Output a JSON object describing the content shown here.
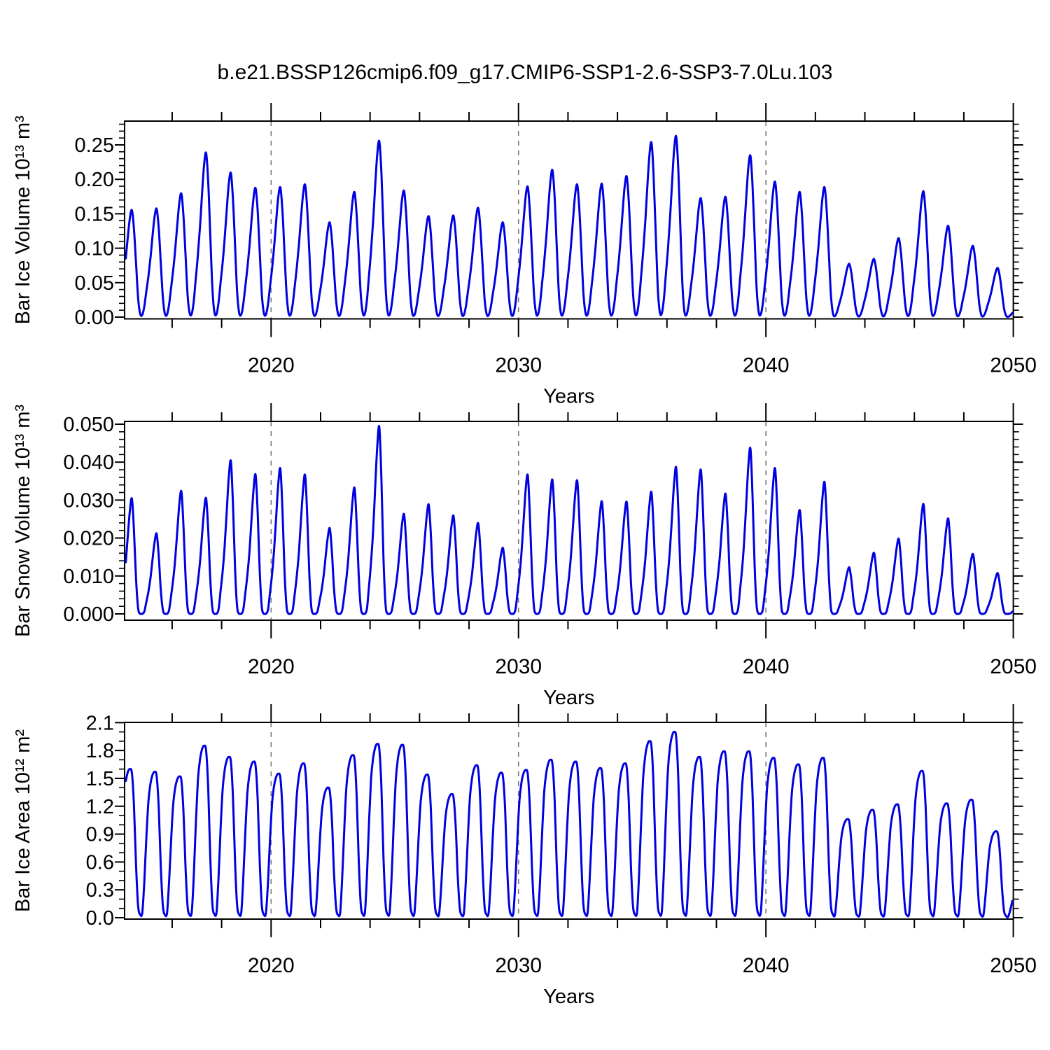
{
  "title": "b.e21.BSSP126cmip6.f09_g17.CMIP6-SSP1-2.6-SSP3-7.0Lu.103",
  "figure": {
    "background_color": "#ffffff",
    "line_color": "#0000e0",
    "grid_color": "#7a7a7a",
    "frame_color": "#000000"
  },
  "x_axis": {
    "label": "Years",
    "range_start": 2014.08,
    "range_end": 2050,
    "tick_step_years": 2,
    "decade_values": [
      2020,
      2030,
      2040,
      2050
    ],
    "decade_labels": [
      "2020",
      "2030",
      "2040",
      "2050"
    ],
    "dashed_grid_years": [
      2020,
      2030,
      2040
    ]
  },
  "chart_data": [
    {
      "id": "ice-volume",
      "type": "line",
      "ylabel": "Bar Ice Volume 10¹³ m³",
      "y_tick_labels": [
        "0.00",
        "0.05",
        "0.10",
        "0.15",
        "0.20",
        "0.25"
      ],
      "y_tick_values": [
        0,
        0.05,
        0.1,
        0.15,
        0.2,
        0.25
      ],
      "y_minor_step": 0.01,
      "ylim": [
        0,
        0.285
      ],
      "seasonality_note": "annual cycle: max in May, min (~0) in Sep-Oct",
      "seasonal_shape_jan_dec": [
        0.38,
        0.55,
        0.75,
        0.93,
        1.0,
        0.82,
        0.5,
        0.18,
        0.03,
        0.02,
        0.1,
        0.24
      ],
      "years": [
        2014,
        2015,
        2016,
        2017,
        2018,
        2019,
        2020,
        2021,
        2022,
        2023,
        2024,
        2025,
        2026,
        2027,
        2028,
        2029,
        2030,
        2031,
        2032,
        2033,
        2034,
        2035,
        2036,
        2037,
        2038,
        2039,
        2040,
        2041,
        2042,
        2043,
        2044,
        2045,
        2046,
        2047,
        2048,
        2049
      ],
      "annual_peak_values": [
        0.155,
        0.157,
        0.179,
        0.238,
        0.209,
        0.187,
        0.188,
        0.192,
        0.137,
        0.181,
        0.255,
        0.183,
        0.146,
        0.147,
        0.158,
        0.137,
        0.189,
        0.213,
        0.192,
        0.193,
        0.204,
        0.253,
        0.262,
        0.172,
        0.174,
        0.234,
        0.196,
        0.181,
        0.188,
        0.077,
        0.084,
        0.114,
        0.182,
        0.132,
        0.103,
        0.071
      ],
      "annual_min_value": 0.0
    },
    {
      "id": "snow-volume",
      "type": "line",
      "ylabel": "Bar Snow Volume 10¹³ m³",
      "y_tick_labels": [
        "0.000",
        "0.010",
        "0.020",
        "0.030",
        "0.040",
        "0.050"
      ],
      "y_tick_values": [
        0,
        0.01,
        0.02,
        0.03,
        0.04,
        0.05
      ],
      "y_minor_step": 0.002,
      "ylim": [
        0,
        0.0507
      ],
      "seasonality_note": "annual cycle: max in May, min (0) in Aug-Oct",
      "seasonal_shape_jan_dec": [
        0.28,
        0.45,
        0.68,
        0.9,
        1.0,
        0.72,
        0.3,
        0.05,
        0.0,
        0.0,
        0.03,
        0.15
      ],
      "years": [
        2014,
        2015,
        2016,
        2017,
        2018,
        2019,
        2020,
        2021,
        2022,
        2023,
        2024,
        2025,
        2026,
        2027,
        2028,
        2029,
        2030,
        2031,
        2032,
        2033,
        2034,
        2035,
        2036,
        2037,
        2038,
        2039,
        2040,
        2041,
        2042,
        2043,
        2044,
        2045,
        2046,
        2047,
        2048,
        2049
      ],
      "annual_peak_values": [
        0.0303,
        0.0211,
        0.0322,
        0.0304,
        0.0402,
        0.0366,
        0.0382,
        0.0365,
        0.0225,
        0.0331,
        0.0492,
        0.0262,
        0.0287,
        0.0258,
        0.0238,
        0.0173,
        0.0365,
        0.0352,
        0.035,
        0.0295,
        0.0294,
        0.032,
        0.0385,
        0.0378,
        0.0315,
        0.0435,
        0.0382,
        0.0272,
        0.0346,
        0.0122,
        0.016,
        0.0197,
        0.0288,
        0.025,
        0.0157,
        0.0107
      ],
      "annual_min_value": 0.0
    },
    {
      "id": "ice-area",
      "type": "line",
      "ylabel": "Bar Ice Area 10¹² m²",
      "y_tick_labels": [
        "0.0",
        "0.3",
        "0.6",
        "0.9",
        "1.2",
        "1.5",
        "1.8",
        "2.1"
      ],
      "y_tick_values": [
        0,
        0.3,
        0.6,
        0.9,
        1.2,
        1.5,
        1.8,
        2.1
      ],
      "y_minor_step": 0.1,
      "ylim": [
        0,
        2.11
      ],
      "seasonality_note": "annual cycle: broad max Mar-May, min near 0 in Sep-Oct",
      "seasonal_shape_jan_dec": [
        0.8,
        0.92,
        0.98,
        1.0,
        0.97,
        0.75,
        0.35,
        0.08,
        0.02,
        0.03,
        0.25,
        0.55
      ],
      "years": [
        2014,
        2015,
        2016,
        2017,
        2018,
        2019,
        2020,
        2021,
        2022,
        2023,
        2024,
        2025,
        2026,
        2027,
        2028,
        2029,
        2030,
        2031,
        2032,
        2033,
        2034,
        2035,
        2036,
        2037,
        2038,
        2039,
        2040,
        2041,
        2042,
        2043,
        2044,
        2045,
        2046,
        2047,
        2048,
        2049
      ],
      "annual_peak_values": [
        1.6,
        1.57,
        1.52,
        1.85,
        1.73,
        1.68,
        1.55,
        1.66,
        1.4,
        1.75,
        1.87,
        1.86,
        1.54,
        1.33,
        1.64,
        1.56,
        1.59,
        1.7,
        1.68,
        1.61,
        1.66,
        1.9,
        2.0,
        1.73,
        1.79,
        1.79,
        1.72,
        1.65,
        1.72,
        1.06,
        1.16,
        1.22,
        1.58,
        1.23,
        1.27,
        0.93
      ],
      "annual_min_value": 0.0
    }
  ]
}
